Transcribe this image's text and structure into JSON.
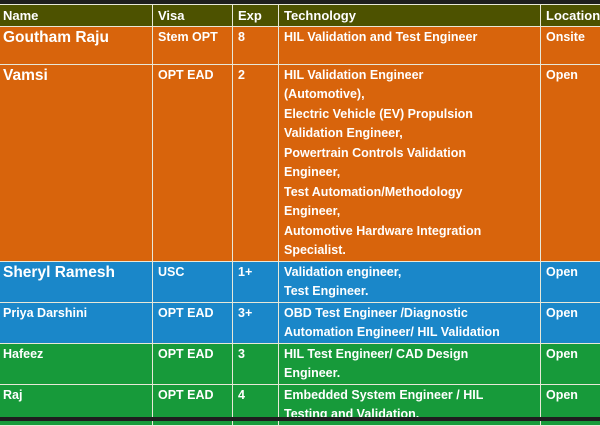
{
  "columns": [
    "Name",
    "Visa",
    "Exp",
    "Technology",
    "Location"
  ],
  "rows": [
    {
      "name": "Goutham Raju",
      "visa": "Stem OPT",
      "exp": "8",
      "technology": [
        "HIL Validation and Test Engineer"
      ],
      "location": "Onsite",
      "color": "#d8640c"
    },
    {
      "name": "Vamsi",
      "visa": "OPT EAD",
      "exp": "2",
      "technology": [
        "HIL Validation Engineer",
        "(Automotive),",
        "Electric Vehicle (EV) Propulsion",
        "Validation Engineer,",
        "Powertrain Controls Validation",
        "Engineer,",
        "Test Automation/Methodology",
        "Engineer,",
        "Automotive Hardware Integration",
        "Specialist."
      ],
      "location": "Open",
      "color": "#d8640c"
    },
    {
      "name": "Sheryl Ramesh",
      "visa": "USC",
      "exp": "1+",
      "technology": [
        "Validation engineer,",
        "Test Engineer."
      ],
      "location": "Open",
      "color": "#1a87c9"
    },
    {
      "name": "Priya Darshini",
      "visa": "OPT EAD",
      "exp": "3+",
      "technology": [
        "OBD Test Engineer /Diagnostic",
        "Automation Engineer/ HIL Validation"
      ],
      "location": "Open",
      "color": "#1a87c9"
    },
    {
      "name": "Hafeez",
      "visa": "OPT EAD",
      "exp": "3",
      "technology": [
        "HIL Test Engineer/ CAD Design",
        "Engineer."
      ],
      "location": "Open",
      "color": "#179a3a"
    },
    {
      "name": "Raj",
      "visa": "OPT EAD",
      "exp": "4",
      "technology": [
        "Embedded System Engineer / HIL",
        "Testing and Validation."
      ],
      "location": "Open",
      "color": "#179a3a"
    }
  ]
}
